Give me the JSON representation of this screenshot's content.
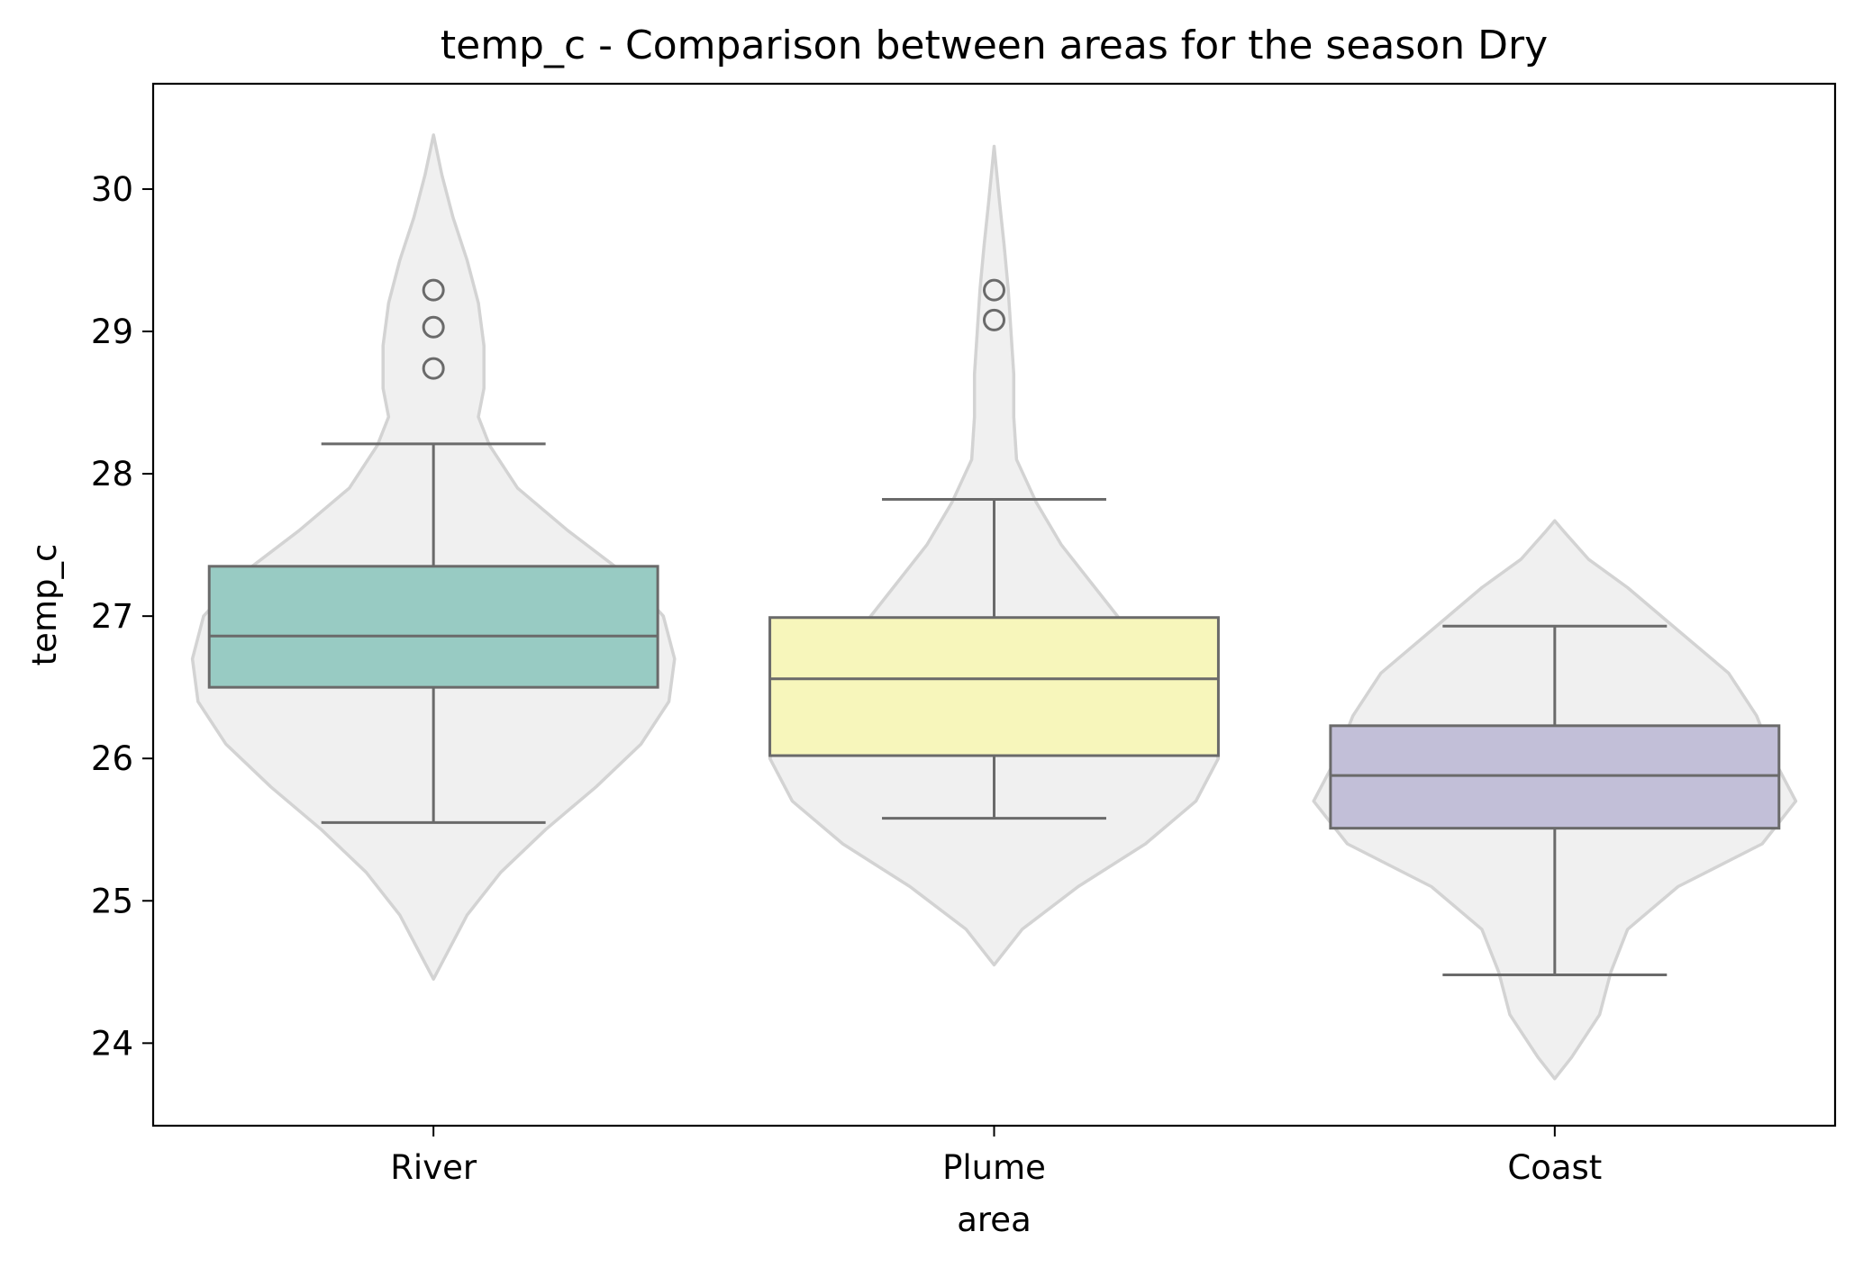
{
  "chart_data": {
    "type": "box",
    "overlay": "violin",
    "title": "temp_c - Comparison between areas for the season Dry",
    "xlabel": "area",
    "ylabel": "temp_c",
    "ylim": [
      23.42,
      30.74
    ],
    "yticks": [
      24,
      25,
      26,
      27,
      28,
      29,
      30
    ],
    "grid": false,
    "categories": [
      "River",
      "Plume",
      "Coast"
    ],
    "boxes": [
      {
        "category": "River",
        "whisker_low": 25.55,
        "q1": 26.5,
        "median": 26.86,
        "q3": 27.35,
        "whisker_high": 28.21,
        "outliers": [
          28.74,
          29.03,
          29.29
        ],
        "color": "#98cbc3"
      },
      {
        "category": "Plume",
        "whisker_low": 25.58,
        "q1": 26.02,
        "median": 26.56,
        "q3": 26.99,
        "whisker_high": 27.82,
        "outliers": [
          29.08,
          29.29
        ],
        "color": "#f7f6bb"
      },
      {
        "category": "Coast",
        "whisker_low": 24.48,
        "q1": 25.51,
        "median": 25.88,
        "q3": 26.23,
        "whisker_high": 26.93,
        "outliers": [],
        "color": "#c2bfd8"
      }
    ],
    "violins": [
      {
        "category": "River",
        "y": [
          24.45,
          24.6,
          24.9,
          25.2,
          25.5,
          25.8,
          26.1,
          26.4,
          26.7,
          27.0,
          27.3,
          27.6,
          27.9,
          28.2,
          28.4,
          28.6,
          28.9,
          29.2,
          29.5,
          29.8,
          30.1,
          30.38
        ],
        "half_width": [
          0.0,
          0.02,
          0.06,
          0.12,
          0.2,
          0.29,
          0.37,
          0.42,
          0.43,
          0.41,
          0.34,
          0.24,
          0.15,
          0.1,
          0.08,
          0.09,
          0.09,
          0.08,
          0.06,
          0.035,
          0.015,
          0.0
        ]
      },
      {
        "category": "Plume",
        "y": [
          24.55,
          24.8,
          25.1,
          25.4,
          25.7,
          26.0,
          26.3,
          26.6,
          26.9,
          27.2,
          27.5,
          27.8,
          28.1,
          28.4,
          28.7,
          29.0,
          29.3,
          29.6,
          29.9,
          30.3
        ],
        "half_width": [
          0.0,
          0.05,
          0.15,
          0.27,
          0.36,
          0.4,
          0.37,
          0.3,
          0.24,
          0.18,
          0.12,
          0.075,
          0.04,
          0.035,
          0.035,
          0.03,
          0.025,
          0.018,
          0.01,
          0.0
        ]
      },
      {
        "category": "Coast",
        "y": [
          23.75,
          23.9,
          24.2,
          24.5,
          24.8,
          25.1,
          25.4,
          25.7,
          26.0,
          26.3,
          26.6,
          26.9,
          27.2,
          27.4,
          27.6,
          27.67
        ],
        "half_width": [
          0.0,
          0.03,
          0.08,
          0.1,
          0.13,
          0.22,
          0.37,
          0.43,
          0.39,
          0.36,
          0.31,
          0.22,
          0.13,
          0.06,
          0.015,
          0.0
        ]
      }
    ],
    "colors": {
      "violin_fill": "#f0f0f0",
      "violin_edge": "#d3d3d3",
      "box_edge": "#6a6a6a",
      "axes": "#000000"
    }
  }
}
